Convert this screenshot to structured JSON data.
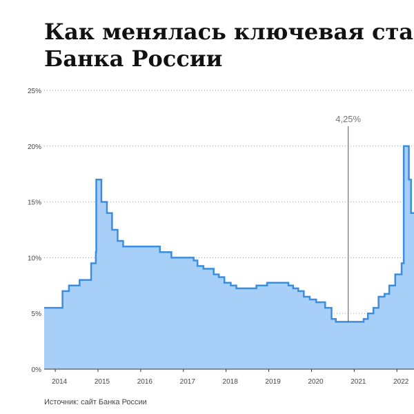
{
  "chart_data": {
    "type": "step",
    "title_lines": [
      "Как менялась ключевая ста",
      "Банка России"
    ],
    "source": "Источник: сайт Банка России",
    "x": [
      2013.74,
      2014.17,
      2014.32,
      2014.57,
      2014.84,
      2014.95,
      2014.96,
      2015.08,
      2015.21,
      2015.33,
      2015.46,
      2015.59,
      2016.45,
      2016.72,
      2017.24,
      2017.33,
      2017.47,
      2017.71,
      2017.83,
      2017.96,
      2018.11,
      2018.24,
      2018.71,
      2018.96,
      2019.46,
      2019.57,
      2019.69,
      2019.82,
      2019.96,
      2020.11,
      2020.32,
      2020.47,
      2020.57,
      2021.22,
      2021.32,
      2021.45,
      2021.57,
      2021.71,
      2021.82,
      2021.96,
      2022.11,
      2022.16,
      2022.28,
      2022.33
    ],
    "values": [
      5.5,
      7,
      7.5,
      8,
      9.5,
      10.5,
      17,
      15,
      14,
      12.5,
      11.5,
      11,
      10.5,
      10,
      9.75,
      9.25,
      9,
      8.5,
      8.25,
      7.75,
      7.5,
      7.25,
      7.5,
      7.75,
      7.5,
      7.25,
      7,
      6.5,
      6.25,
      6,
      5.5,
      4.5,
      4.25,
      4.5,
      5,
      5.5,
      6.5,
      6.75,
      7.5,
      8.5,
      9.5,
      20,
      17,
      14
    ],
    "color": "#3a8de0",
    "fill": "#a8cff7",
    "xlim": [
      2013.74,
      2022.4
    ],
    "ylim": [
      0,
      25
    ],
    "xticks": [
      2014,
      2015,
      2016,
      2017,
      2018,
      2019,
      2020,
      2021,
      2022
    ],
    "yticks": [
      {
        "value": 0,
        "label": "0%"
      },
      {
        "value": 5,
        "label": "5%"
      },
      {
        "value": 10,
        "label": "10%"
      },
      {
        "value": 15,
        "label": "15%"
      },
      {
        "value": 20,
        "label": "20%"
      },
      {
        "value": 25,
        "label": "25%"
      }
    ],
    "grid": true,
    "annotation": {
      "text": "4,25%",
      "x": 2020.86,
      "value": 4.25
    }
  }
}
